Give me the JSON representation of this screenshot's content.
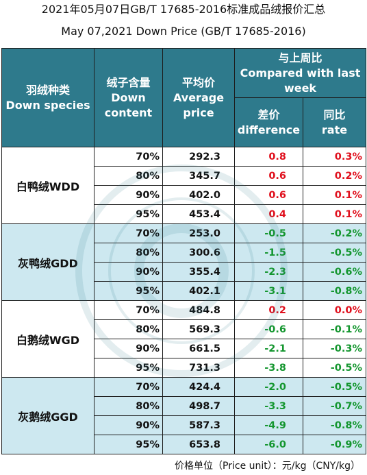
{
  "title": "2021年05月07日GB/T 17685-2016标准成品绒报价汇总",
  "subtitle": "May 07,2021 Down Price (GB/T 17685-2016)",
  "headers": {
    "species": "羽绒种类\nDown species",
    "content": "绒子含量\nDown content",
    "price": "平均价\nAverage price",
    "compared": "与上周比\nCompared with last week",
    "diff": "差价\ndifference",
    "rate": "同比\nrate"
  },
  "groups": [
    {
      "species": "白鸭绒WDD",
      "shade": "white",
      "rows": [
        {
          "content": "70%",
          "price": "292.3",
          "diff": "0.8",
          "rate": "0.3%"
        },
        {
          "content": "80%",
          "price": "345.7",
          "diff": "0.6",
          "rate": "0.2%"
        },
        {
          "content": "90%",
          "price": "402.0",
          "diff": "0.6",
          "rate": "0.1%"
        },
        {
          "content": "95%",
          "price": "453.4",
          "diff": "0.4",
          "rate": "0.1%"
        }
      ]
    },
    {
      "species": "灰鸭绒GDD",
      "shade": "blue",
      "rows": [
        {
          "content": "70%",
          "price": "253.0",
          "diff": "-0.5",
          "rate": "-0.2%"
        },
        {
          "content": "80%",
          "price": "300.6",
          "diff": "-1.5",
          "rate": "-0.5%"
        },
        {
          "content": "90%",
          "price": "355.4",
          "diff": "-2.3",
          "rate": "-0.6%"
        },
        {
          "content": "95%",
          "price": "402.1",
          "diff": "-3.1",
          "rate": "-0.8%"
        }
      ]
    },
    {
      "species": "白鹅绒WGD",
      "shade": "white",
      "rows": [
        {
          "content": "70%",
          "price": "484.8",
          "diff": "0.2",
          "rate": "0.0%"
        },
        {
          "content": "80%",
          "price": "569.3",
          "diff": "-0.6",
          "rate": "-0.1%"
        },
        {
          "content": "90%",
          "price": "661.5",
          "diff": "-2.1",
          "rate": "-0.3%"
        },
        {
          "content": "95%",
          "price": "731.3",
          "diff": "-3.8",
          "rate": "-0.5%"
        }
      ]
    },
    {
      "species": "灰鹅绒GGD",
      "shade": "blue",
      "rows": [
        {
          "content": "70%",
          "price": "424.4",
          "diff": "-2.0",
          "rate": "-0.5%"
        },
        {
          "content": "80%",
          "price": "498.7",
          "diff": "-3.3",
          "rate": "-0.7%"
        },
        {
          "content": "90%",
          "price": "587.3",
          "diff": "-4.9",
          "rate": "-0.8%"
        },
        {
          "content": "95%",
          "price": "653.8",
          "diff": "-6.0",
          "rate": "-0.9%"
        }
      ]
    }
  ],
  "footer": "价格单位（Price unit）：元/kg（CNY/kg）",
  "colors": {
    "header_bg": "#2e7a8c",
    "shade_blue": "#cde8f0",
    "positive": "#e0101d",
    "negative": "#14962f"
  }
}
